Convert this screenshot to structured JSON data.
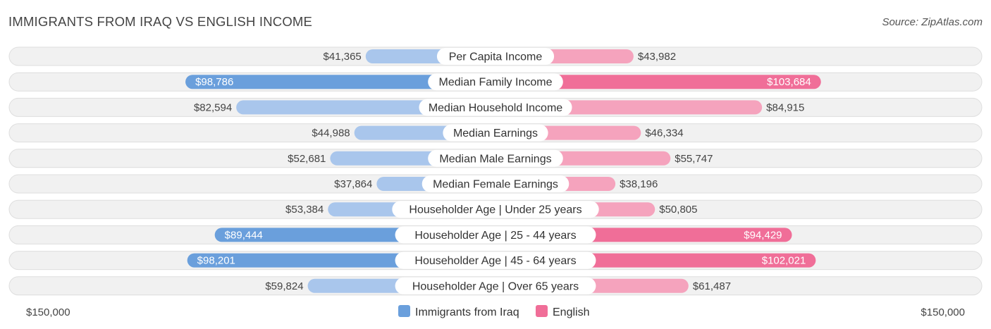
{
  "header": {
    "title": "IMMIGRANTS FROM IRAQ VS ENGLISH INCOME",
    "source": "Source: ZipAtlas.com"
  },
  "colors": {
    "left_dark": "#6a9fdc",
    "left_light": "#a9c6ec",
    "right_dark": "#f06e98",
    "right_light": "#f5a3bd",
    "row_bg": "#f1f1f1",
    "row_border": "#dedede"
  },
  "chart_data": {
    "type": "bar",
    "orientation": "horizontal-diverging",
    "title": "IMMIGRANTS FROM IRAQ VS ENGLISH INCOME",
    "categories": [
      "Per Capita Income",
      "Median Family Income",
      "Median Household Income",
      "Median Earnings",
      "Median Male Earnings",
      "Median Female Earnings",
      "Householder Age | Under 25 years",
      "Householder Age | 25 - 44 years",
      "Householder Age | 45 - 64 years",
      "Householder Age | Over 65 years"
    ],
    "series": [
      {
        "name": "Immigrants from Iraq",
        "side": "left",
        "values": [
          41365,
          98786,
          82594,
          44988,
          52681,
          37864,
          53384,
          89444,
          98201,
          59824
        ],
        "labels": [
          "$41,365",
          "$98,786",
          "$82,594",
          "$44,988",
          "$52,681",
          "$37,864",
          "$53,384",
          "$89,444",
          "$98,201",
          "$59,824"
        ]
      },
      {
        "name": "English",
        "side": "right",
        "values": [
          43982,
          103684,
          84915,
          46334,
          55747,
          38196,
          50805,
          94429,
          102021,
          61487
        ],
        "labels": [
          "$43,982",
          "$103,684",
          "$84,915",
          "$46,334",
          "$55,747",
          "$38,196",
          "$50,805",
          "$94,429",
          "$102,021",
          "$61,487"
        ]
      }
    ],
    "highlighted_rows": [
      1,
      7,
      8
    ],
    "xlim": [
      0,
      150000
    ],
    "axis_labels": {
      "left": "$150,000",
      "right": "$150,000"
    },
    "legend": [
      "Immigrants from Iraq",
      "English"
    ],
    "legend_position": "bottom-center"
  }
}
